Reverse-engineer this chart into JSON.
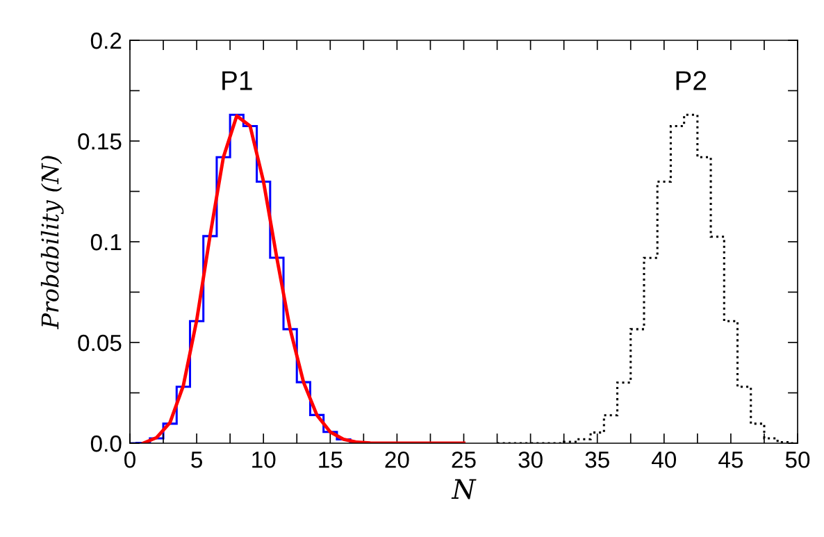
{
  "chart_data": {
    "type": "histogram",
    "xlabel": "N",
    "ylabel": "Probability (N)",
    "xlim": [
      0,
      50
    ],
    "ylim": [
      0,
      0.2
    ],
    "xticks": [
      0,
      {
        "value": 2.5,
        "label": null
      },
      5,
      {
        "value": 7.5,
        "label": null
      },
      10,
      {
        "value": 12.5,
        "label": null
      },
      15,
      {
        "value": 17.5,
        "label": null
      },
      20,
      {
        "value": 22.5,
        "label": null
      },
      25,
      {
        "value": 27.5,
        "label": null
      },
      30,
      {
        "value": 32.5,
        "label": null
      },
      35,
      {
        "value": 37.5,
        "label": null
      },
      40,
      {
        "value": 42.5,
        "label": null
      },
      45,
      {
        "value": 47.5,
        "label": null
      },
      50
    ],
    "yticks": [
      {
        "value": 0,
        "label": "0.0"
      },
      {
        "value": 0.025,
        "label": null
      },
      0.05,
      {
        "value": 0.075,
        "label": null
      },
      0.1,
      {
        "value": 0.125,
        "label": null
      },
      0.15,
      {
        "value": 0.175,
        "label": null
      },
      0.2
    ],
    "grid": false,
    "legend": false,
    "annotations": [
      "P1",
      "P2"
    ],
    "series": [
      {
        "color": "#0000ff",
        "line_style": "solid",
        "bins": [
          0,
          0.5,
          1.5,
          2.5,
          3.5,
          4.5,
          5.5,
          6.5,
          7.5,
          8.5,
          9.5,
          10.5,
          11.5,
          12.5,
          13.5,
          14.5,
          15.5,
          16.5,
          17.5
        ],
        "values": [
          0,
          0.0002,
          0.0024,
          0.0097,
          0.028,
          0.0606,
          0.1028,
          0.142,
          0.163,
          0.1574,
          0.1298,
          0.0921,
          0.0566,
          0.0303,
          0.014,
          0.0056,
          0.0019,
          0.0005
        ]
      },
      {
        "color": "#000000",
        "line_style": "dotted",
        "bins": [
          27.5,
          28.5,
          29.5,
          30.5,
          31.5,
          32.5,
          33.5,
          34.5,
          35.5,
          36.5,
          37.5,
          38.5,
          39.5,
          40.5,
          41.5,
          42.5,
          43.5,
          44.5,
          45.5,
          46.5,
          47.5,
          48.5,
          49.5,
          50
        ],
        "values": [
          0,
          0,
          0,
          0,
          0,
          0.0007,
          0.002,
          0.0053,
          0.0139,
          0.0301,
          0.0566,
          0.092,
          0.1298,
          0.1574,
          0.163,
          0.142,
          0.1025,
          0.0606,
          0.028,
          0.0097,
          0.0024,
          0.0005,
          0
        ]
      },
      {
        "type": "line",
        "color": "#ff0000",
        "line_style": "solid",
        "x": [
          1,
          2,
          3,
          4,
          5,
          6,
          7,
          8,
          9,
          10,
          11,
          12,
          13,
          14,
          15,
          16,
          17,
          18,
          19,
          20,
          21,
          22,
          23,
          24,
          25
        ],
        "values": [
          0,
          0.0028,
          0.0102,
          0.0286,
          0.061,
          0.103,
          0.142,
          0.1625,
          0.1574,
          0.13,
          0.092,
          0.0566,
          0.0303,
          0.014,
          0.0056,
          0.0019,
          0.0005,
          0.0001,
          0,
          0,
          0,
          0,
          0,
          0,
          0
        ]
      }
    ]
  }
}
